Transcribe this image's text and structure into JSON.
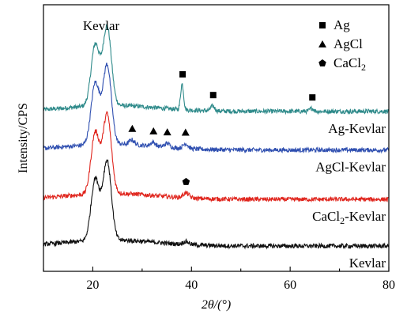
{
  "chart_data": {
    "type": "line",
    "title": "",
    "xlabel": "2θ/(°)",
    "ylabel": "Intensity/CPS",
    "xlim": [
      10,
      80
    ],
    "x_ticks": [
      20,
      40,
      60,
      80
    ],
    "y_ticks_shown": false,
    "grid": false,
    "peak_label": "Kevlar",
    "legend": {
      "placement": "top-right",
      "entries": [
        {
          "marker": "square",
          "label": "Ag"
        },
        {
          "marker": "triangle",
          "label": "AgCl"
        },
        {
          "marker": "pentagon",
          "label": "CaCl",
          "subscript": "2"
        }
      ]
    },
    "series": [
      {
        "name": "Ag-Kevlar",
        "color": "#2e8a8a",
        "offset": 3,
        "peaks": [
          {
            "x": 20.5,
            "height": 0.62,
            "width": 0.85
          },
          {
            "x": 22.9,
            "height": 0.8,
            "width": 0.85
          },
          {
            "x": 38.1,
            "height": 0.26,
            "width": 0.3
          },
          {
            "x": 44.3,
            "height": 0.05,
            "width": 0.4
          },
          {
            "x": 64.4,
            "height": 0.03,
            "width": 0.4
          }
        ],
        "markers": [
          {
            "x": 38.2,
            "shape": "square"
          },
          {
            "x": 44.4,
            "shape": "square"
          },
          {
            "x": 64.5,
            "shape": "square"
          }
        ],
        "label": {
          "text": "Ag-Kevlar",
          "sub": "",
          "after": ""
        }
      },
      {
        "name": "AgCl-Kevlar",
        "color": "#2f4fb0",
        "offset": 2,
        "peaks": [
          {
            "x": 20.5,
            "height": 0.62,
            "width": 0.85
          },
          {
            "x": 22.9,
            "height": 0.8,
            "width": 0.85
          },
          {
            "x": 27.9,
            "height": 0.05,
            "width": 0.5
          },
          {
            "x": 32.2,
            "height": 0.04,
            "width": 0.5
          },
          {
            "x": 35.1,
            "height": 0.04,
            "width": 0.5
          },
          {
            "x": 38.8,
            "height": 0.05,
            "width": 0.5
          }
        ],
        "markers": [
          {
            "x": 28.0,
            "shape": "triangle"
          },
          {
            "x": 32.3,
            "shape": "triangle"
          },
          {
            "x": 35.1,
            "shape": "triangle"
          },
          {
            "x": 38.8,
            "shape": "triangle"
          }
        ],
        "label": {
          "text": "AgCl-Kevlar",
          "sub": "",
          "after": ""
        }
      },
      {
        "name": "CaCl2-Kevlar",
        "color": "#e0261e",
        "offset": 1,
        "peaks": [
          {
            "x": 20.5,
            "height": 0.62,
            "width": 0.85
          },
          {
            "x": 22.9,
            "height": 0.8,
            "width": 0.85
          },
          {
            "x": 38.9,
            "height": 0.05,
            "width": 0.6
          }
        ],
        "markers": [
          {
            "x": 38.9,
            "shape": "pentagon"
          }
        ],
        "label": {
          "text": "CaCl",
          "sub": "2",
          "after": "-Kevlar"
        }
      },
      {
        "name": "Kevlar",
        "color": "#111111",
        "offset": 0,
        "peaks": [
          {
            "x": 20.5,
            "height": 0.62,
            "width": 0.85
          },
          {
            "x": 22.9,
            "height": 0.8,
            "width": 0.85
          },
          {
            "x": 38.9,
            "height": 0.03,
            "width": 0.6
          }
        ],
        "markers": [],
        "label": {
          "text": "Kevlar",
          "sub": "",
          "after": ""
        }
      }
    ]
  }
}
